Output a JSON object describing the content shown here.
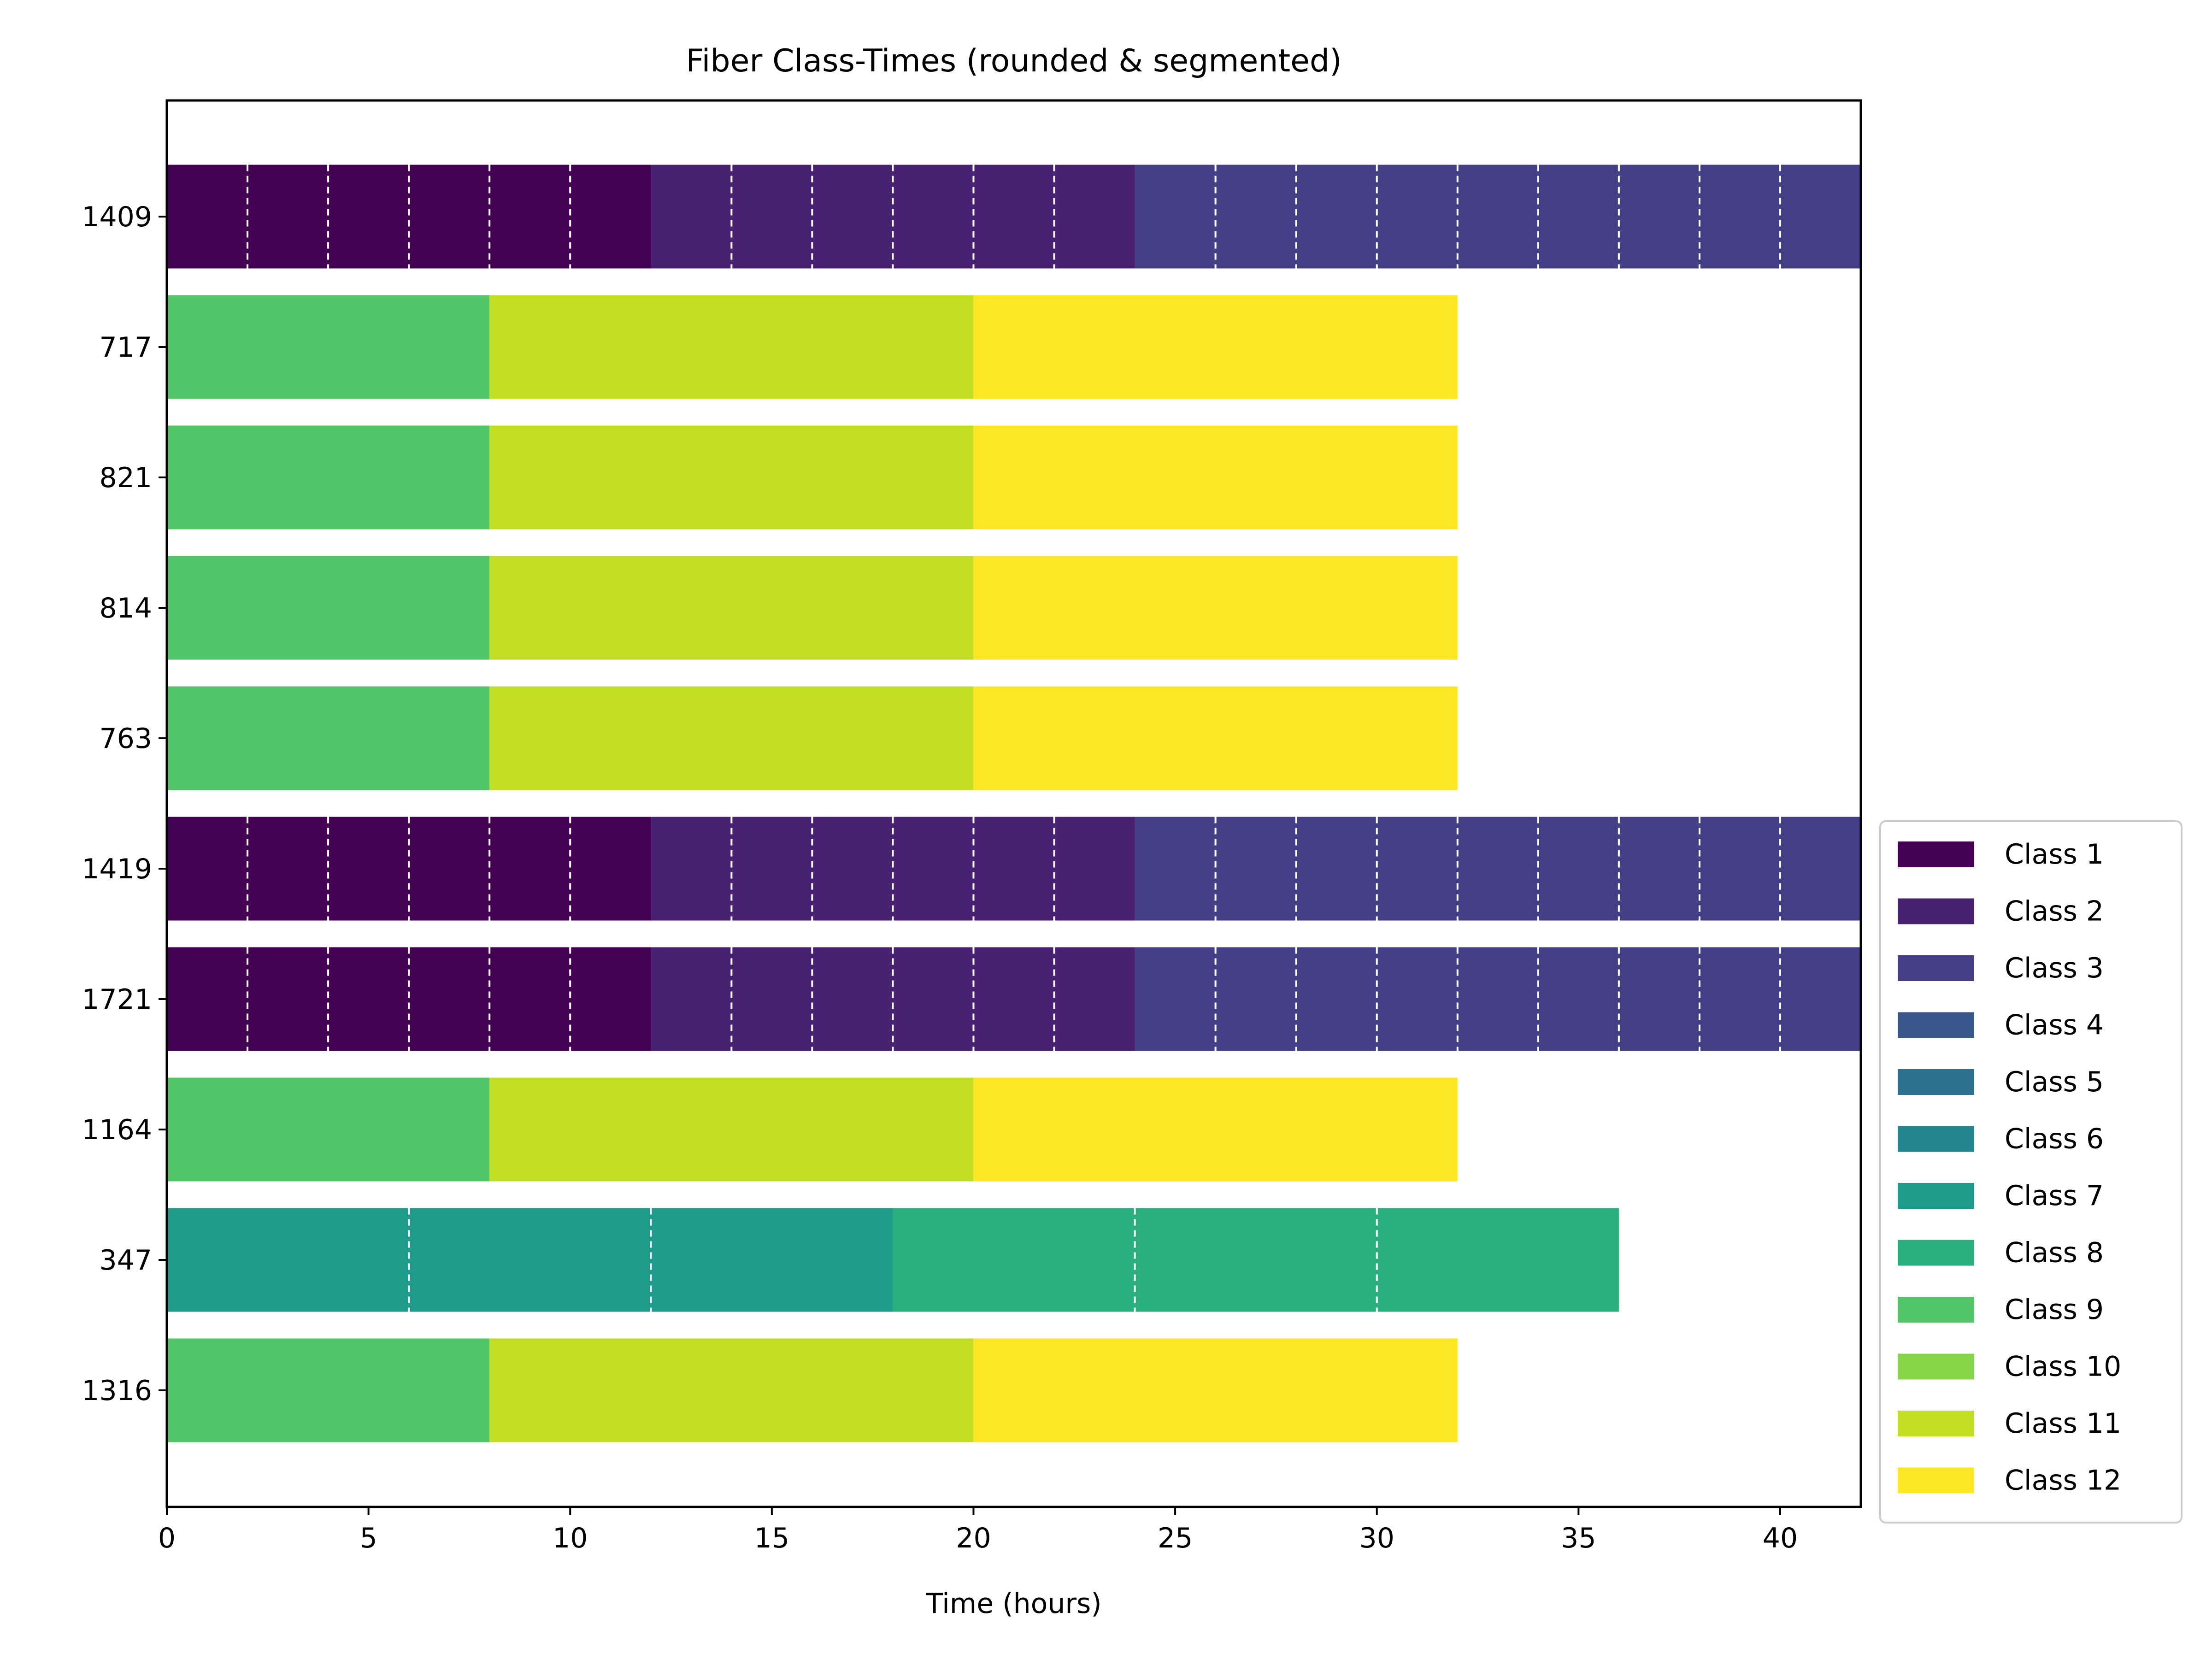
{
  "chart_data": {
    "type": "bar",
    "orientation": "horizontal",
    "stacked": true,
    "title": "Fiber Class-Times (rounded & segmented)",
    "xlabel": "Time (hours)",
    "ylabel": "",
    "xlim": [
      0,
      42
    ],
    "xticks": [
      0,
      5,
      10,
      15,
      20,
      25,
      30,
      35,
      40
    ],
    "grid": false,
    "legend_position": "right, outside plot",
    "categories": [
      "1409",
      "717",
      "821",
      "814",
      "763",
      "1419",
      "1721",
      "1164",
      "347",
      "1316"
    ],
    "classes": [
      {
        "name": "Class 1",
        "color": "#440154"
      },
      {
        "name": "Class 2",
        "color": "#482173"
      },
      {
        "name": "Class 3",
        "color": "#433e85"
      },
      {
        "name": "Class 4",
        "color": "#38588c"
      },
      {
        "name": "Class 5",
        "color": "#2d708e"
      },
      {
        "name": "Class 6",
        "color": "#25858e"
      },
      {
        "name": "Class 7",
        "color": "#1e9b8a"
      },
      {
        "name": "Class 8",
        "color": "#2ab07f"
      },
      {
        "name": "Class 9",
        "color": "#52c569"
      },
      {
        "name": "Class 10",
        "color": "#86d549"
      },
      {
        "name": "Class 11",
        "color": "#c2df23"
      },
      {
        "name": "Class 12",
        "color": "#fde725"
      }
    ],
    "bars": [
      {
        "fiber": "1409",
        "segments": [
          {
            "class": "Class 1",
            "start": 0,
            "duration": 12,
            "dividers": [
              2,
              4,
              6,
              8,
              10
            ]
          },
          {
            "class": "Class 2",
            "start": 12,
            "duration": 12,
            "dividers": [
              14,
              16,
              18,
              20,
              22
            ]
          },
          {
            "class": "Class 3",
            "start": 24,
            "duration": 18,
            "dividers": [
              26,
              28,
              30,
              32,
              34,
              36,
              38,
              40
            ]
          }
        ]
      },
      {
        "fiber": "717",
        "segments": [
          {
            "class": "Class 9",
            "start": 0,
            "duration": 8,
            "dividers": []
          },
          {
            "class": "Class 11",
            "start": 8,
            "duration": 12,
            "dividers": []
          },
          {
            "class": "Class 12",
            "start": 20,
            "duration": 12,
            "dividers": []
          }
        ]
      },
      {
        "fiber": "821",
        "segments": [
          {
            "class": "Class 9",
            "start": 0,
            "duration": 8,
            "dividers": []
          },
          {
            "class": "Class 11",
            "start": 8,
            "duration": 12,
            "dividers": []
          },
          {
            "class": "Class 12",
            "start": 20,
            "duration": 12,
            "dividers": []
          }
        ]
      },
      {
        "fiber": "814",
        "segments": [
          {
            "class": "Class 9",
            "start": 0,
            "duration": 8,
            "dividers": []
          },
          {
            "class": "Class 11",
            "start": 8,
            "duration": 12,
            "dividers": []
          },
          {
            "class": "Class 12",
            "start": 20,
            "duration": 12,
            "dividers": []
          }
        ]
      },
      {
        "fiber": "763",
        "segments": [
          {
            "class": "Class 9",
            "start": 0,
            "duration": 8,
            "dividers": []
          },
          {
            "class": "Class 11",
            "start": 8,
            "duration": 12,
            "dividers": []
          },
          {
            "class": "Class 12",
            "start": 20,
            "duration": 12,
            "dividers": []
          }
        ]
      },
      {
        "fiber": "1419",
        "segments": [
          {
            "class": "Class 1",
            "start": 0,
            "duration": 12,
            "dividers": [
              2,
              4,
              6,
              8,
              10
            ]
          },
          {
            "class": "Class 2",
            "start": 12,
            "duration": 12,
            "dividers": [
              14,
              16,
              18,
              20,
              22
            ]
          },
          {
            "class": "Class 3",
            "start": 24,
            "duration": 18,
            "dividers": [
              26,
              28,
              30,
              32,
              34,
              36,
              38,
              40
            ]
          }
        ]
      },
      {
        "fiber": "1721",
        "segments": [
          {
            "class": "Class 1",
            "start": 0,
            "duration": 12,
            "dividers": [
              2,
              4,
              6,
              8,
              10
            ]
          },
          {
            "class": "Class 2",
            "start": 12,
            "duration": 12,
            "dividers": [
              14,
              16,
              18,
              20,
              22
            ]
          },
          {
            "class": "Class 3",
            "start": 24,
            "duration": 18,
            "dividers": [
              26,
              28,
              30,
              32,
              34,
              36,
              38,
              40
            ]
          }
        ]
      },
      {
        "fiber": "1164",
        "segments": [
          {
            "class": "Class 9",
            "start": 0,
            "duration": 8,
            "dividers": []
          },
          {
            "class": "Class 11",
            "start": 8,
            "duration": 12,
            "dividers": []
          },
          {
            "class": "Class 12",
            "start": 20,
            "duration": 12,
            "dividers": []
          }
        ]
      },
      {
        "fiber": "347",
        "segments": [
          {
            "class": "Class 7",
            "start": 0,
            "duration": 18,
            "dividers": [
              6,
              12
            ]
          },
          {
            "class": "Class 8",
            "start": 18,
            "duration": 18,
            "dividers": [
              24,
              30
            ]
          }
        ]
      },
      {
        "fiber": "1316",
        "segments": [
          {
            "class": "Class 9",
            "start": 0,
            "duration": 8,
            "dividers": []
          },
          {
            "class": "Class 11",
            "start": 8,
            "duration": 12,
            "dividers": []
          },
          {
            "class": "Class 12",
            "start": 20,
            "duration": 12,
            "dividers": []
          }
        ]
      }
    ]
  }
}
